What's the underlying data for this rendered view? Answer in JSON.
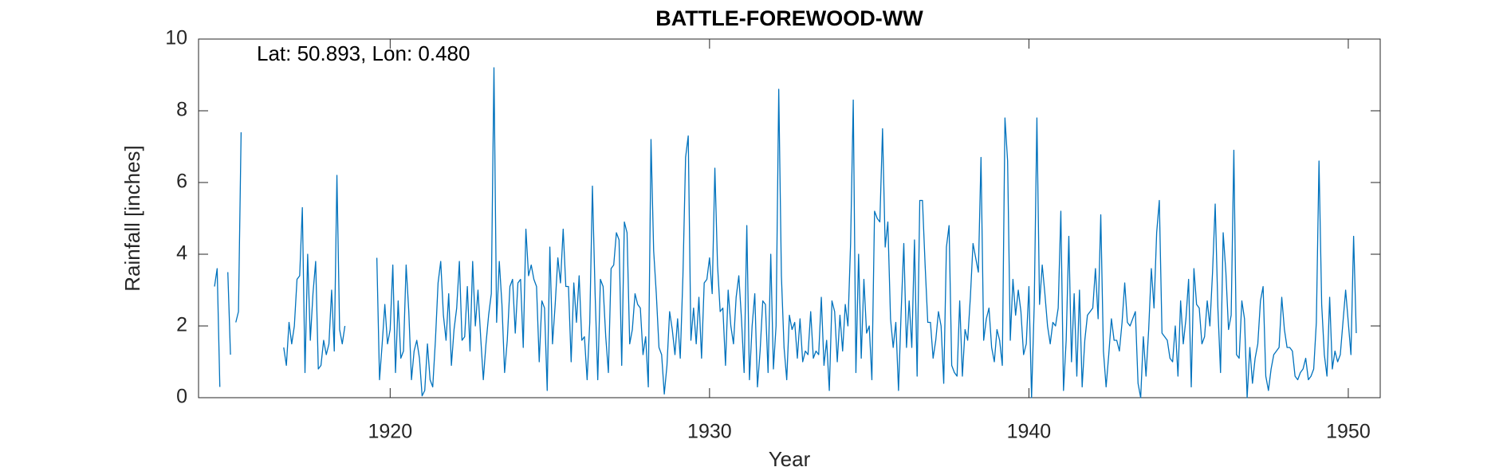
{
  "chart_data": {
    "type": "line",
    "title": "BATTLE-FOREWOOD-WW",
    "x_label": "Year",
    "y_label": "Rainfall [inches]",
    "annotation": "Lat: 50.893, Lon: 0.480",
    "xlim": [
      1914,
      1951
    ],
    "ylim": [
      0,
      10
    ],
    "xticks": [
      1920,
      1930,
      1940,
      1950
    ],
    "yticks": [
      0,
      2,
      4,
      6,
      8,
      10
    ],
    "x": [
      1914,
      1914.083,
      1914.167,
      1914.25,
      1914.333,
      1914.417,
      1914.5,
      1914.583,
      1914.667,
      1914.75,
      1914.833,
      1914.917,
      1915,
      1915.083,
      1915.167,
      1915.25,
      1915.333,
      1915.417,
      1915.5,
      1915.583,
      1915.667,
      1915.75,
      1915.833,
      1915.917,
      1916,
      1916.083,
      1916.167,
      1916.25,
      1916.333,
      1916.417,
      1916.5,
      1916.583,
      1916.667,
      1916.75,
      1916.833,
      1916.917,
      1917,
      1917.083,
      1917.167,
      1917.25,
      1917.333,
      1917.417,
      1917.5,
      1917.583,
      1917.667,
      1917.75,
      1917.833,
      1917.917,
      1918,
      1918.083,
      1918.167,
      1918.25,
      1918.333,
      1918.417,
      1918.5,
      1918.583,
      1918.667,
      1918.75,
      1918.833,
      1918.917,
      1919,
      1919.083,
      1919.167,
      1919.25,
      1919.333,
      1919.417,
      1919.5,
      1919.583,
      1919.667,
      1919.75,
      1919.833,
      1919.917,
      1920,
      1920.083,
      1920.167,
      1920.25,
      1920.333,
      1920.417,
      1920.5,
      1920.583,
      1920.667,
      1920.75,
      1920.833,
      1920.917,
      1921,
      1921.083,
      1921.167,
      1921.25,
      1921.333,
      1921.417,
      1921.5,
      1921.583,
      1921.667,
      1921.75,
      1921.833,
      1921.917,
      1922,
      1922.083,
      1922.167,
      1922.25,
      1922.333,
      1922.417,
      1922.5,
      1922.583,
      1922.667,
      1922.75,
      1922.833,
      1922.917,
      1923,
      1923.083,
      1923.167,
      1923.25,
      1923.333,
      1923.417,
      1923.5,
      1923.583,
      1923.667,
      1923.75,
      1923.833,
      1923.917,
      1924,
      1924.083,
      1924.167,
      1924.25,
      1924.333,
      1924.417,
      1924.5,
      1924.583,
      1924.667,
      1924.75,
      1924.833,
      1924.917,
      1925,
      1925.083,
      1925.167,
      1925.25,
      1925.333,
      1925.417,
      1925.5,
      1925.583,
      1925.667,
      1925.75,
      1925.833,
      1925.917,
      1926,
      1926.083,
      1926.167,
      1926.25,
      1926.333,
      1926.417,
      1926.5,
      1926.583,
      1926.667,
      1926.75,
      1926.833,
      1926.917,
      1927,
      1927.083,
      1927.167,
      1927.25,
      1927.333,
      1927.417,
      1927.5,
      1927.583,
      1927.667,
      1927.75,
      1927.833,
      1927.917,
      1928,
      1928.083,
      1928.167,
      1928.25,
      1928.333,
      1928.417,
      1928.5,
      1928.583,
      1928.667,
      1928.75,
      1928.833,
      1928.917,
      1929,
      1929.083,
      1929.167,
      1929.25,
      1929.333,
      1929.417,
      1929.5,
      1929.583,
      1929.667,
      1929.75,
      1929.833,
      1929.917,
      1930,
      1930.083,
      1930.167,
      1930.25,
      1930.333,
      1930.417,
      1930.5,
      1930.583,
      1930.667,
      1930.75,
      1930.833,
      1930.917,
      1931,
      1931.083,
      1931.167,
      1931.25,
      1931.333,
      1931.417,
      1931.5,
      1931.583,
      1931.667,
      1931.75,
      1931.833,
      1931.917,
      1932,
      1932.083,
      1932.167,
      1932.25,
      1932.333,
      1932.417,
      1932.5,
      1932.583,
      1932.667,
      1932.75,
      1932.833,
      1932.917,
      1933,
      1933.083,
      1933.167,
      1933.25,
      1933.333,
      1933.417,
      1933.5,
      1933.583,
      1933.667,
      1933.75,
      1933.833,
      1933.917,
      1934,
      1934.083,
      1934.167,
      1934.25,
      1934.333,
      1934.417,
      1934.5,
      1934.583,
      1934.667,
      1934.75,
      1934.833,
      1934.917,
      1935,
      1935.083,
      1935.167,
      1935.25,
      1935.333,
      1935.417,
      1935.5,
      1935.583,
      1935.667,
      1935.75,
      1935.833,
      1935.917,
      1936,
      1936.083,
      1936.167,
      1936.25,
      1936.333,
      1936.417,
      1936.5,
      1936.583,
      1936.667,
      1936.75,
      1936.833,
      1936.917,
      1937,
      1937.083,
      1937.167,
      1937.25,
      1937.333,
      1937.417,
      1937.5,
      1937.583,
      1937.667,
      1937.75,
      1937.833,
      1937.917,
      1938,
      1938.083,
      1938.167,
      1938.25,
      1938.333,
      1938.417,
      1938.5,
      1938.583,
      1938.667,
      1938.75,
      1938.833,
      1938.917,
      1939,
      1939.083,
      1939.167,
      1939.25,
      1939.333,
      1939.417,
      1939.5,
      1939.583,
      1939.667,
      1939.75,
      1939.833,
      1939.917,
      1940,
      1940.083,
      1940.167,
      1940.25,
      1940.333,
      1940.417,
      1940.5,
      1940.583,
      1940.667,
      1940.75,
      1940.833,
      1940.917,
      1941,
      1941.083,
      1941.167,
      1941.25,
      1941.333,
      1941.417,
      1941.5,
      1941.583,
      1941.667,
      1941.75,
      1941.833,
      1941.917,
      1942,
      1942.083,
      1942.167,
      1942.25,
      1942.333,
      1942.417,
      1942.5,
      1942.583,
      1942.667,
      1942.75,
      1942.833,
      1942.917,
      1943,
      1943.083,
      1943.167,
      1943.25,
      1943.333,
      1943.417,
      1943.5,
      1943.583,
      1943.667,
      1943.75,
      1943.833,
      1943.917,
      1944,
      1944.083,
      1944.167,
      1944.25,
      1944.333,
      1944.417,
      1944.5,
      1944.583,
      1944.667,
      1944.75,
      1944.833,
      1944.917,
      1945,
      1945.083,
      1945.167,
      1945.25,
      1945.333,
      1945.417,
      1945.5,
      1945.583,
      1945.667,
      1945.75,
      1945.833,
      1945.917,
      1946,
      1946.083,
      1946.167,
      1946.25,
      1946.333,
      1946.417,
      1946.5,
      1946.583,
      1946.667,
      1946.75,
      1946.833,
      1946.917,
      1947,
      1947.083,
      1947.167,
      1947.25,
      1947.333,
      1947.417,
      1947.5,
      1947.583,
      1947.667,
      1947.75,
      1947.833,
      1947.917,
      1948,
      1948.083,
      1948.167,
      1948.25,
      1948.333,
      1948.417,
      1948.5,
      1948.583,
      1948.667,
      1948.75,
      1948.833,
      1948.917,
      1949,
      1949.083,
      1949.167,
      1949.25,
      1949.333,
      1949.417,
      1949.5,
      1949.583,
      1949.667,
      1949.75,
      1949.833,
      1949.917,
      1950,
      1950.083,
      1950.167,
      1950.25
    ],
    "series": [
      {
        "name": "BATTLE-FOREWOOD-WW",
        "color": "#0072bd",
        "values": [
          null,
          null,
          null,
          null,
          null,
          null,
          3.1,
          3.6,
          0.3,
          null,
          null,
          3.5,
          1.2,
          null,
          2.1,
          2.4,
          7.4,
          null,
          null,
          null,
          null,
          null,
          null,
          null,
          null,
          null,
          null,
          null,
          null,
          null,
          null,
          null,
          1.4,
          0.9,
          2.1,
          1.5,
          2.0,
          3.3,
          3.4,
          5.3,
          0.7,
          4.0,
          1.6,
          2.9,
          3.8,
          0.8,
          0.9,
          1.6,
          1.2,
          1.5,
          3.0,
          1.3,
          6.2,
          1.9,
          1.5,
          2.0,
          null,
          null,
          null,
          null,
          null,
          null,
          null,
          null,
          null,
          null,
          null,
          3.9,
          0.5,
          1.5,
          2.6,
          1.5,
          1.9,
          3.7,
          0.7,
          2.7,
          1.1,
          1.3,
          3.7,
          2.4,
          0.5,
          1.3,
          1.6,
          1.1,
          0.05,
          0.2,
          1.5,
          0.5,
          0.3,
          1.6,
          3.2,
          3.8,
          2.3,
          1.6,
          2.9,
          0.9,
          1.9,
          2.5,
          3.8,
          1.6,
          1.7,
          3.1,
          1.3,
          3.8,
          2.0,
          3.0,
          1.7,
          0.5,
          1.5,
          2.3,
          2.9,
          9.2,
          2.1,
          3.8,
          2.6,
          0.7,
          1.6,
          3.1,
          3.3,
          1.8,
          3.2,
          3.3,
          1.4,
          4.7,
          3.4,
          3.7,
          3.3,
          3.1,
          1.0,
          2.7,
          2.5,
          0.2,
          4.2,
          1.5,
          2.6,
          3.9,
          3.2,
          4.7,
          3.1,
          3.1,
          1.0,
          3.2,
          2.1,
          3.4,
          1.6,
          1.7,
          0.5,
          2.1,
          5.9,
          2.9,
          0.5,
          3.3,
          3.1,
          1.7,
          0.7,
          3.6,
          3.7,
          4.6,
          4.4,
          0.9,
          4.9,
          4.6,
          1.5,
          1.9,
          2.9,
          2.6,
          2.5,
          1.2,
          1.7,
          0.3,
          7.2,
          4.1,
          2.9,
          1.4,
          1.2,
          0.1,
          0.9,
          2.4,
          1.9,
          1.2,
          2.2,
          1.1,
          3.4,
          6.7,
          7.3,
          1.6,
          2.5,
          1.5,
          2.8,
          1.1,
          3.2,
          3.3,
          3.9,
          2.9,
          6.4,
          3.7,
          2.4,
          2.5,
          0.9,
          3.0,
          2.0,
          1.5,
          2.8,
          3.4,
          2.2,
          0.7,
          4.8,
          0.5,
          2.0,
          2.9,
          0.3,
          1.3,
          2.7,
          2.6,
          0.7,
          4.0,
          0.8,
          2.0,
          8.6,
          3.4,
          1.4,
          0.5,
          2.3,
          1.9,
          2.1,
          1.1,
          2.2,
          1.0,
          1.3,
          1.2,
          2.4,
          1.1,
          1.3,
          1.2,
          2.8,
          0.9,
          1.6,
          0.2,
          2.7,
          2.4,
          1.0,
          2.3,
          1.3,
          2.6,
          2.0,
          4.3,
          8.3,
          0.7,
          4.0,
          1.1,
          3.3,
          1.8,
          2.0,
          0.5,
          5.2,
          5.0,
          4.9,
          7.5,
          4.2,
          4.9,
          2.2,
          1.4,
          2.1,
          0.2,
          2.4,
          4.3,
          1.4,
          2.7,
          1.4,
          4.4,
          0.6,
          5.5,
          5.5,
          3.7,
          2.1,
          2.1,
          1.1,
          1.6,
          2.4,
          2.0,
          0.4,
          4.2,
          4.8,
          0.9,
          0.7,
          0.6,
          2.7,
          0.6,
          1.9,
          1.6,
          2.8,
          4.3,
          3.9,
          3.5,
          6.7,
          1.6,
          2.2,
          2.5,
          1.4,
          1.0,
          1.9,
          1.6,
          0.9,
          7.8,
          6.6,
          1.6,
          3.3,
          2.3,
          3.0,
          2.4,
          1.2,
          1.5,
          3.1,
          0.0,
          2.6,
          7.8,
          2.6,
          3.7,
          2.9,
          2.0,
          1.5,
          2.1,
          2.0,
          2.5,
          5.2,
          0.2,
          1.6,
          4.5,
          1.0,
          2.9,
          0.6,
          3.0,
          0.3,
          1.6,
          2.3,
          2.4,
          2.5,
          3.6,
          2.2,
          5.1,
          1.3,
          0.3,
          1.2,
          2.2,
          1.6,
          1.6,
          1.3,
          2.1,
          3.2,
          2.1,
          2.0,
          2.2,
          2.4,
          0.4,
          0.0,
          1.7,
          0.6,
          1.9,
          3.6,
          2.5,
          4.6,
          5.5,
          1.8,
          1.7,
          1.6,
          1.1,
          1.0,
          2.0,
          0.6,
          2.7,
          1.5,
          2.2,
          3.3,
          0.3,
          3.6,
          2.6,
          2.5,
          1.5,
          1.7,
          2.7,
          2.0,
          3.5,
          5.4,
          2.5,
          0.7,
          4.6,
          3.5,
          1.9,
          2.3,
          6.9,
          1.2,
          1.1,
          2.7,
          2.2,
          0.0,
          1.4,
          0.4,
          1.1,
          1.5,
          2.7,
          3.1,
          0.6,
          0.2,
          0.8,
          1.2,
          1.3,
          1.4,
          2.8,
          1.9,
          1.4,
          1.4,
          1.3,
          0.6,
          0.5,
          0.7,
          0.8,
          1.1,
          0.5,
          0.6,
          0.8,
          2.1,
          6.6,
          2.6,
          1.2,
          0.6,
          2.8,
          0.8,
          1.3,
          1.0,
          1.2,
          2.1,
          3.0,
          2.1,
          1.2,
          4.5,
          1.8
        ]
      }
    ]
  }
}
